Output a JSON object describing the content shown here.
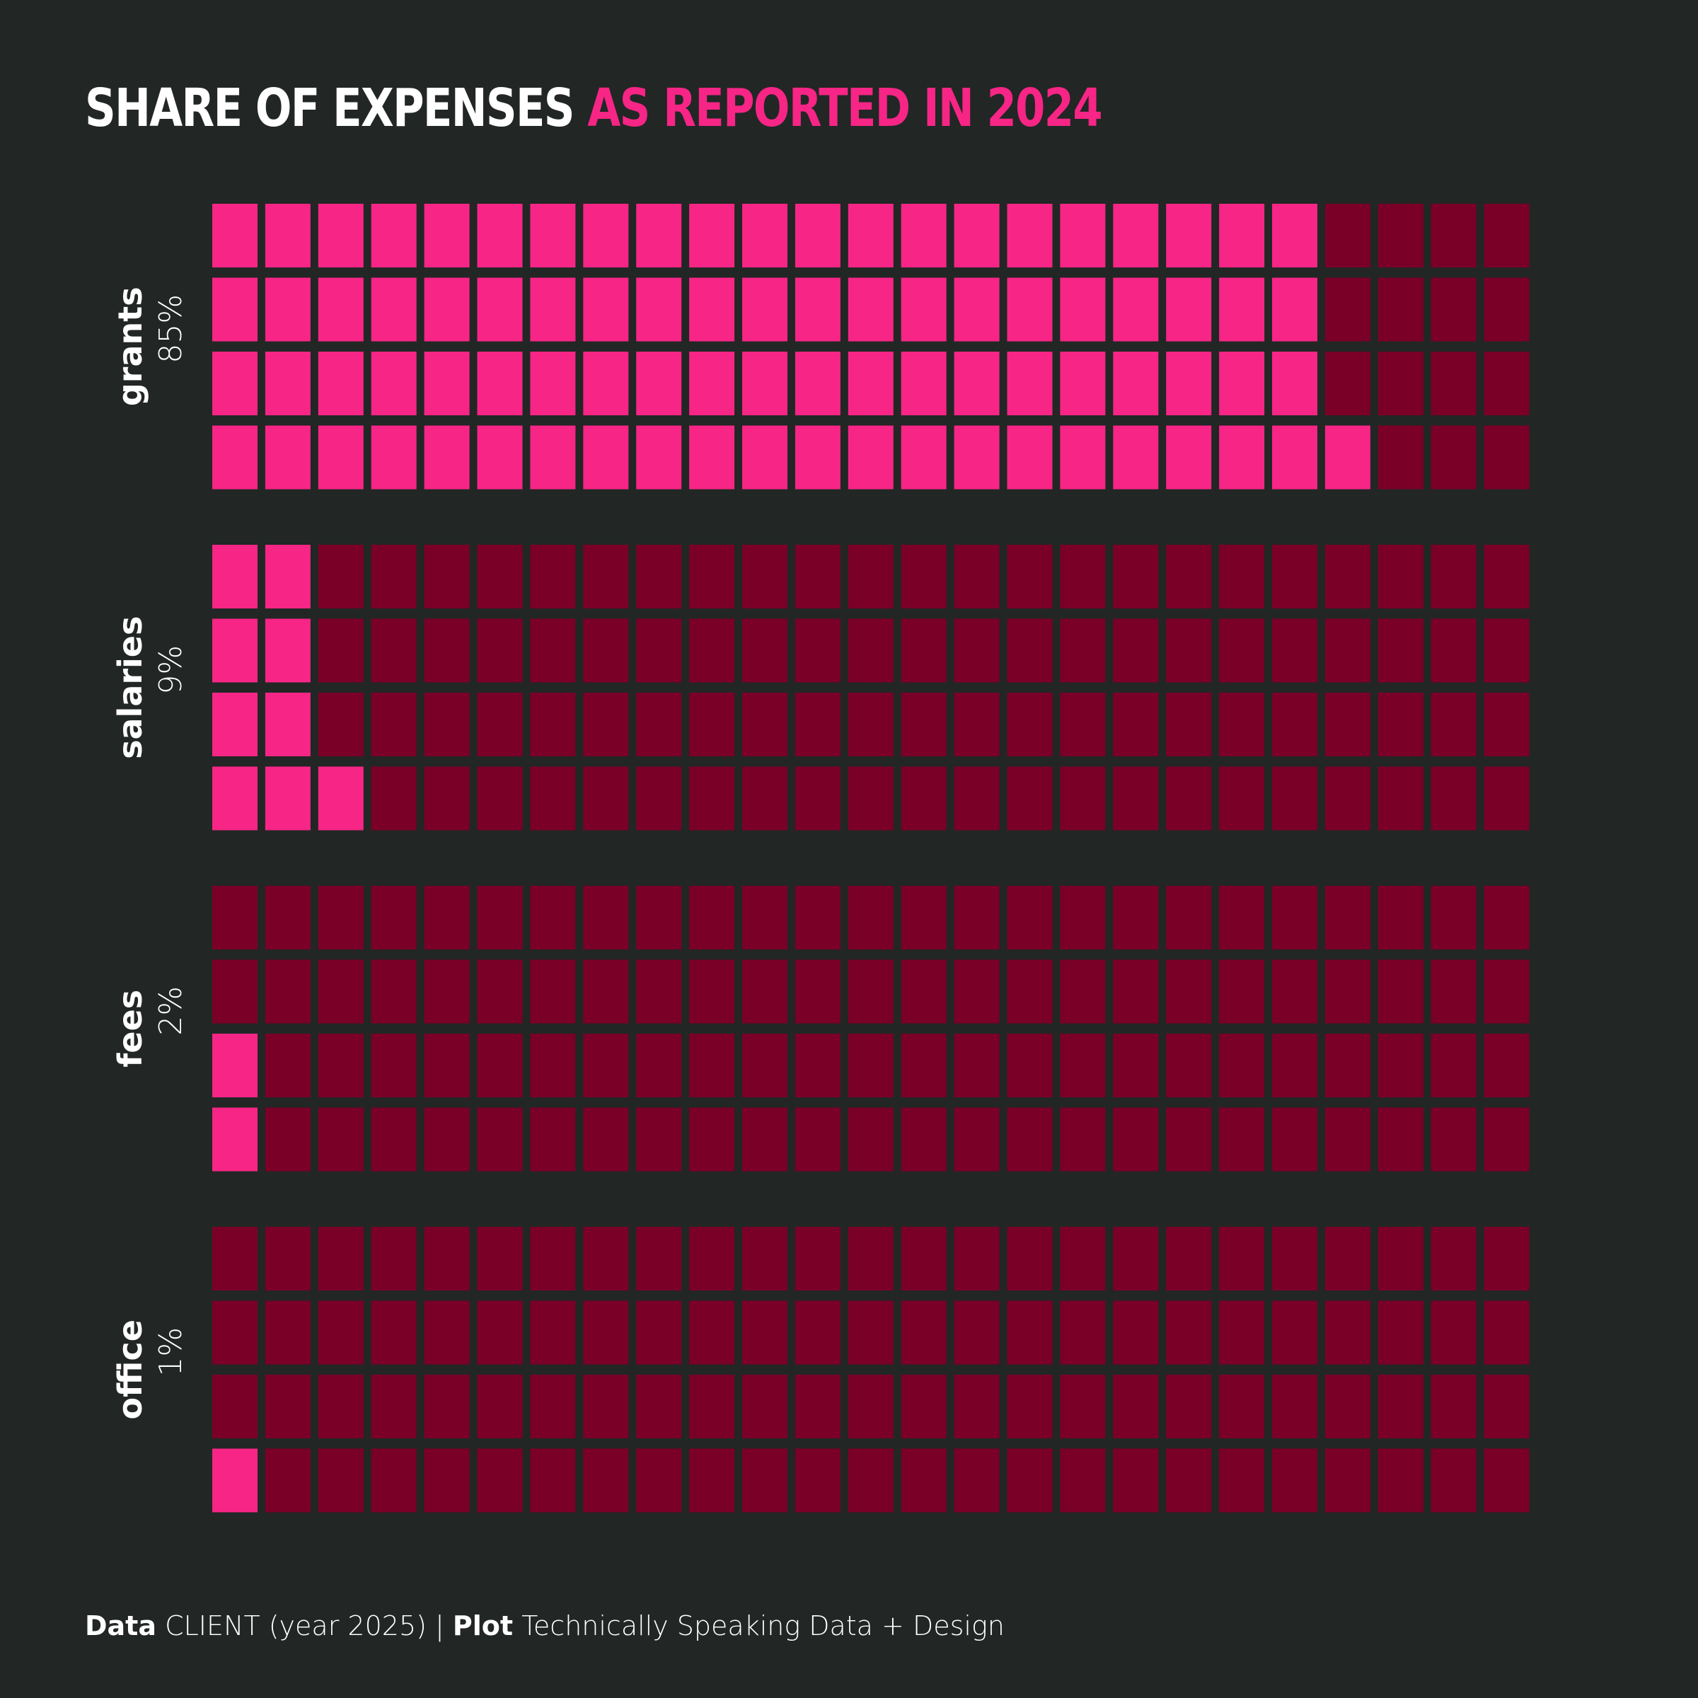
{
  "title": {
    "part1": "SHARE OF EXPENSES",
    "part2": "AS REPORTED IN 2024"
  },
  "caption": {
    "data_label": "Data",
    "data_text": "CLIENT (year 2025) |",
    "plot_label": "Plot",
    "plot_text": "Technically Speaking Data + Design"
  },
  "colors": {
    "background": "#222625",
    "filled": "#f72585",
    "empty": "#7a0028",
    "title_white": "#ffffff",
    "title_accent": "#f72585"
  },
  "chart_data": {
    "type": "waffle",
    "title": "SHARE OF EXPENSES AS REPORTED IN 2024",
    "units_per_category": 100,
    "rows_per_category": 4,
    "columns": 25,
    "fill_order": "bottom row first, left to right, spread across rows",
    "categories": [
      {
        "name": "grants",
        "label": "85%",
        "value": 85,
        "filled_per_row": [
          21,
          21,
          21,
          22
        ]
      },
      {
        "name": "salaries",
        "label": "9%",
        "value": 9,
        "filled_per_row": [
          2,
          2,
          2,
          3
        ]
      },
      {
        "name": "fees",
        "label": "2%",
        "value": 2,
        "filled_per_row": [
          0,
          0,
          1,
          1
        ]
      },
      {
        "name": "office",
        "label": "1%",
        "value": 1,
        "filled_per_row": [
          0,
          0,
          0,
          1
        ]
      }
    ]
  }
}
